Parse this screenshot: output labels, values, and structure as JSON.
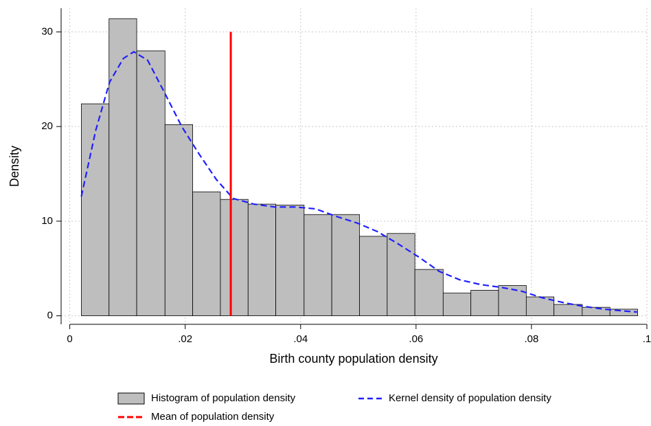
{
  "chart_data": {
    "type": "histogram",
    "x_label": "Birth county population density",
    "y_label": "Density",
    "xlim": [
      -0.0015,
      0.1
    ],
    "ylim": [
      -0.9,
      32.5
    ],
    "xticks": [
      0,
      {
        "value": 0.02,
        "label": ".02"
      },
      {
        "value": 0.04,
        "label": ".04"
      },
      {
        "value": 0.06,
        "label": ".06"
      },
      {
        "value": 0.08,
        "label": ".08"
      },
      {
        "value": 0.1,
        "label": ".1"
      }
    ],
    "yticks": [
      0,
      10,
      20,
      30
    ],
    "grid": true,
    "legend": "bottom",
    "series": [
      {
        "name": "Histogram of population density",
        "color": "#bebebe",
        "bins": [
          0.002,
          0.0068,
          0.0116,
          0.0165,
          0.0213,
          0.0261,
          0.0309,
          0.0357,
          0.0406,
          0.0454,
          0.0502,
          0.055,
          0.0598,
          0.0647,
          0.0695,
          0.0743,
          0.0791,
          0.0839,
          0.0888,
          0.0936,
          0.0984
        ],
        "values": [
          22.4,
          31.4,
          28.0,
          20.2,
          13.1,
          12.3,
          11.8,
          11.7,
          10.7,
          10.7,
          8.4,
          8.7,
          4.9,
          2.4,
          2.7,
          3.2,
          2.0,
          1.2,
          0.9,
          0.7
        ]
      },
      {
        "name": "Kernel density of population density",
        "color": "#1f1fff",
        "x": [
          0.002,
          0.0045,
          0.0069,
          0.0093,
          0.0111,
          0.0135,
          0.0164,
          0.0194,
          0.0224,
          0.0254,
          0.0283,
          0.0319,
          0.0355,
          0.039,
          0.0426,
          0.0462,
          0.0498,
          0.0533,
          0.0569,
          0.0605,
          0.064,
          0.0676,
          0.0712,
          0.0748,
          0.0783,
          0.0819,
          0.0855,
          0.089,
          0.0926,
          0.0962,
          0.0983
        ],
        "values": [
          12.6,
          19.6,
          24.7,
          27.2,
          27.9,
          27.0,
          23.6,
          20.0,
          17.1,
          14.4,
          12.4,
          11.8,
          11.5,
          11.5,
          11.3,
          10.5,
          9.8,
          8.9,
          7.6,
          6.2,
          4.7,
          3.8,
          3.3,
          3.0,
          2.6,
          1.9,
          1.4,
          1.0,
          0.7,
          0.5,
          0.4
        ]
      },
      {
        "name": "Mean of population density",
        "color": "#ff0000",
        "value": 0.0279
      }
    ]
  }
}
